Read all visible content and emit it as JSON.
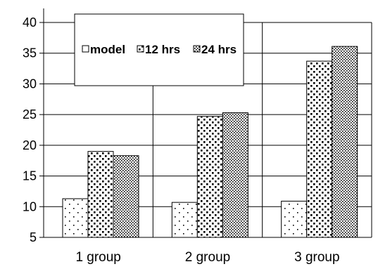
{
  "chart_data": {
    "type": "bar",
    "title": "",
    "xlabel": "",
    "ylabel": "",
    "categories": [
      "1 group",
      "2 group",
      "3 group"
    ],
    "series": [
      {
        "name": "model",
        "values": [
          11.3,
          10.7,
          10.9
        ],
        "pattern": "sparse-dots"
      },
      {
        "name": "12 hrs",
        "values": [
          19.0,
          24.7,
          33.7
        ],
        "pattern": "dense-dots"
      },
      {
        "name": "24 hrs",
        "values": [
          18.3,
          25.3,
          36.1
        ],
        "pattern": "fine-dots"
      }
    ],
    "ylim": [
      5,
      40
    ],
    "yticks": [
      "5",
      "10",
      "15",
      "20",
      "25",
      "30",
      "35",
      "40"
    ],
    "grid": true,
    "legend_position": "top-center"
  }
}
